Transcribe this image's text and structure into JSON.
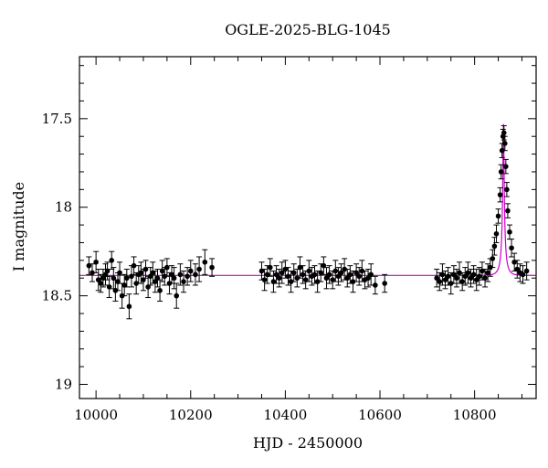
{
  "chart_data": {
    "type": "scatter",
    "title": "OGLE-2025-BLG-1045",
    "xlabel": "HJD - 2450000",
    "ylabel": "I magnitude",
    "xlim": [
      9965,
      10930
    ],
    "ylim": [
      19.08,
      17.15
    ],
    "y_inverted": true,
    "grid": false,
    "x_ticks": [
      10000,
      10200,
      10400,
      10600,
      10800
    ],
    "y_ticks": [
      17.5,
      18,
      18.5,
      19
    ],
    "y_tick_labels": [
      "17.5",
      "18",
      "18.5",
      "19"
    ],
    "colors": {
      "points": "#000000",
      "model": "#cc00cc",
      "axes": "#000000"
    },
    "series": [
      {
        "type": "scatter_with_errorbars",
        "x": [
          9985,
          9992,
          10000,
          10005,
          10010,
          10015,
          10020,
          10024,
          10028,
          10033,
          10037,
          10041,
          10046,
          10050,
          10055,
          10060,
          10065,
          10070,
          10075,
          10080,
          10085,
          10090,
          10095,
          10100,
          10105,
          10110,
          10115,
          10120,
          10125,
          10130,
          10135,
          10140,
          10145,
          10150,
          10155,
          10160,
          10165,
          10170,
          10178,
          10185,
          10193,
          10200,
          10210,
          10218,
          10230,
          10245,
          10350,
          10356,
          10362,
          10368,
          10375,
          10381,
          10387,
          10393,
          10400,
          10406,
          10412,
          10418,
          10425,
          10431,
          10437,
          10443,
          10450,
          10456,
          10462,
          10468,
          10475,
          10481,
          10487,
          10493,
          10500,
          10506,
          10512,
          10518,
          10525,
          10531,
          10537,
          10543,
          10550,
          10556,
          10562,
          10568,
          10575,
          10581,
          10590,
          10610,
          10720,
          10726,
          10732,
          10738,
          10744,
          10750,
          10756,
          10762,
          10768,
          10774,
          10780,
          10786,
          10792,
          10798,
          10804,
          10810,
          10816,
          10822,
          10828,
          10833,
          10838,
          10842,
          10846,
          10850,
          10854,
          10856,
          10858,
          10860,
          10862,
          10864,
          10866,
          10868,
          10870,
          10874,
          10878,
          10884,
          10890,
          10896,
          10902,
          10910
        ],
        "y": [
          18.33,
          18.37,
          18.31,
          18.41,
          18.43,
          18.4,
          18.38,
          18.36,
          18.45,
          18.3,
          18.4,
          18.47,
          18.42,
          18.37,
          18.5,
          18.44,
          18.4,
          18.56,
          18.39,
          18.33,
          18.43,
          18.38,
          18.37,
          18.41,
          18.35,
          18.45,
          18.39,
          18.37,
          18.42,
          18.4,
          18.47,
          18.36,
          18.39,
          18.34,
          18.43,
          18.38,
          18.4,
          18.5,
          18.38,
          18.42,
          18.39,
          18.36,
          18.38,
          18.35,
          18.31,
          18.34,
          18.36,
          18.41,
          18.38,
          18.34,
          18.42,
          18.38,
          18.4,
          18.37,
          18.35,
          18.39,
          18.42,
          18.37,
          18.4,
          18.34,
          18.38,
          18.41,
          18.36,
          18.39,
          18.38,
          18.42,
          18.37,
          18.33,
          18.4,
          18.38,
          18.41,
          18.36,
          18.39,
          18.37,
          18.35,
          18.4,
          18.38,
          18.42,
          18.37,
          18.39,
          18.36,
          18.41,
          18.4,
          18.38,
          18.44,
          18.43,
          18.4,
          18.42,
          18.38,
          18.41,
          18.39,
          18.43,
          18.38,
          18.4,
          18.37,
          18.42,
          18.39,
          18.37,
          18.4,
          18.38,
          18.41,
          18.39,
          18.36,
          18.4,
          18.37,
          18.34,
          18.29,
          18.22,
          18.15,
          18.05,
          17.93,
          17.8,
          17.68,
          17.6,
          17.58,
          17.64,
          17.77,
          17.9,
          18.02,
          18.14,
          18.23,
          18.31,
          18.35,
          18.37,
          18.38,
          18.36
        ],
        "yerr": [
          0.05,
          0.05,
          0.06,
          0.06,
          0.05,
          0.05,
          0.06,
          0.05,
          0.06,
          0.05,
          0.06,
          0.06,
          0.05,
          0.06,
          0.07,
          0.06,
          0.05,
          0.07,
          0.06,
          0.05,
          0.06,
          0.05,
          0.06,
          0.06,
          0.05,
          0.06,
          0.05,
          0.06,
          0.06,
          0.05,
          0.06,
          0.06,
          0.05,
          0.05,
          0.06,
          0.05,
          0.06,
          0.07,
          0.06,
          0.06,
          0.05,
          0.06,
          0.06,
          0.07,
          0.07,
          0.05,
          0.05,
          0.06,
          0.05,
          0.05,
          0.06,
          0.05,
          0.05,
          0.06,
          0.05,
          0.05,
          0.06,
          0.05,
          0.05,
          0.06,
          0.05,
          0.05,
          0.06,
          0.05,
          0.05,
          0.06,
          0.05,
          0.05,
          0.06,
          0.05,
          0.05,
          0.06,
          0.05,
          0.05,
          0.06,
          0.05,
          0.05,
          0.06,
          0.05,
          0.05,
          0.06,
          0.05,
          0.05,
          0.06,
          0.05,
          0.05,
          0.05,
          0.05,
          0.06,
          0.05,
          0.05,
          0.06,
          0.05,
          0.05,
          0.06,
          0.05,
          0.05,
          0.06,
          0.05,
          0.05,
          0.06,
          0.05,
          0.05,
          0.05,
          0.05,
          0.05,
          0.05,
          0.05,
          0.05,
          0.04,
          0.04,
          0.04,
          0.04,
          0.04,
          0.04,
          0.04,
          0.04,
          0.04,
          0.04,
          0.04,
          0.05,
          0.05,
          0.05,
          0.05,
          0.05,
          0.05
        ]
      },
      {
        "type": "line",
        "description_of_model": "PSPL",
        "baseline": 18.385,
        "t0": 10861,
        "peak": 17.53,
        "tE": 11
      }
    ]
  }
}
